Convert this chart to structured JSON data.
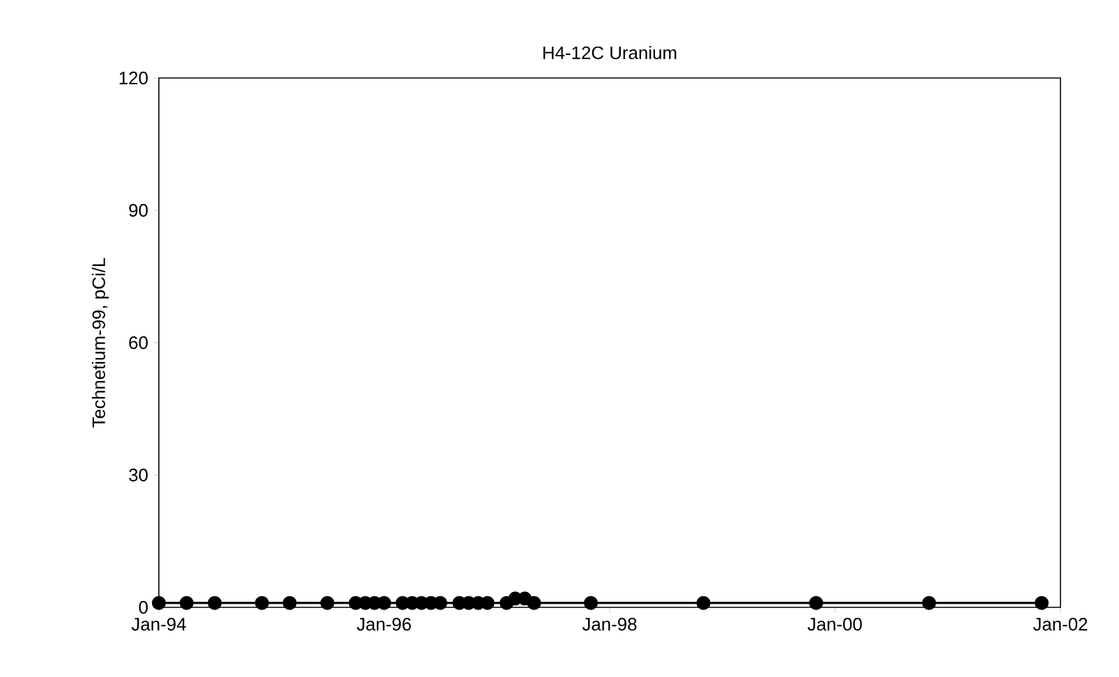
{
  "chart_data": {
    "type": "line",
    "title": "H4-12C Uranium",
    "ylabel": "Technetium-99, pCi/L",
    "x": [
      "1994-01",
      "1994-04",
      "1994-07",
      "1994-12",
      "1995-03",
      "1995-07",
      "1995-10",
      "1995-11",
      "1995-12",
      "1996-01",
      "1996-03",
      "1996-04",
      "1996-05",
      "1996-06",
      "1996-07",
      "1996-09",
      "1996-10",
      "1996-11",
      "1996-12",
      "1997-02",
      "1997-03",
      "1997-04",
      "1997-05",
      "1997-11",
      "1998-11",
      "1999-11",
      "2000-11",
      "2001-11"
    ],
    "series": [
      {
        "color": "#000000",
        "values": [
          1,
          1,
          1,
          1,
          1,
          1,
          1,
          1,
          1,
          1,
          1,
          1,
          1,
          1,
          1,
          1,
          1,
          1,
          1,
          1,
          2,
          2,
          1,
          1,
          1,
          1,
          1,
          1
        ]
      }
    ],
    "xlim": [
      "1994-01",
      "2002-01"
    ],
    "xticks": [
      {
        "value": "1994-01",
        "label": "Jan-94"
      },
      {
        "value": "1996-01",
        "label": "Jan-96"
      },
      {
        "value": "1998-01",
        "label": "Jan-98"
      },
      {
        "value": "2000-01",
        "label": "Jan-00"
      },
      {
        "value": "2002-01",
        "label": "Jan-02"
      }
    ],
    "ylim": [
      0,
      120
    ],
    "yticks": [
      0,
      30,
      60,
      90,
      120
    ],
    "grid": false,
    "marker": "circle",
    "line_style": "solid"
  }
}
